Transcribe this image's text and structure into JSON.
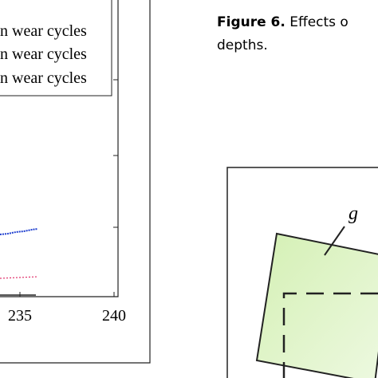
{
  "figure_plot": {
    "legend": [
      "n wear cycles",
      "n wear cycles",
      "n wear cycles"
    ],
    "x_tick_labels": [
      "235",
      "240"
    ]
  },
  "caption": {
    "label": "Figure 6.",
    "text_line1": "Effects o",
    "text_line2": "depths."
  },
  "diagram": {
    "label": "g"
  }
}
